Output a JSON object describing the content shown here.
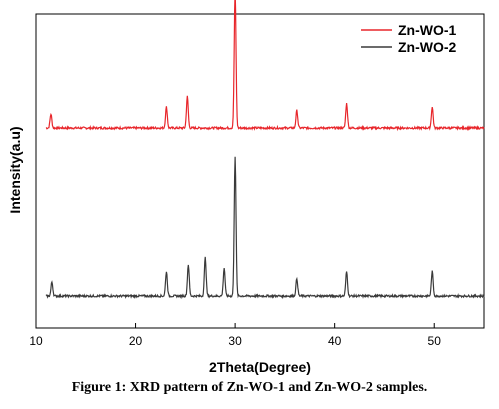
{
  "chart_data": {
    "type": "line",
    "xlabel": "2Theta(Degree)",
    "ylabel": "Intensity(a.u)",
    "xlim": [
      10,
      55
    ],
    "x_ticks": [
      10,
      20,
      30,
      40,
      50
    ],
    "y_ticks_shown": false,
    "grid": false,
    "legend_position": "top-right",
    "series": [
      {
        "name": "Zn-WO-1",
        "color": "#e8262b",
        "baseline": 0.48,
        "peaks": [
          {
            "x": 11.5,
            "y": 0.04
          },
          {
            "x": 23.1,
            "y": 0.06
          },
          {
            "x": 25.2,
            "y": 0.09
          },
          {
            "x": 30.0,
            "y": 0.39
          },
          {
            "x": 36.2,
            "y": 0.05
          },
          {
            "x": 41.2,
            "y": 0.07
          },
          {
            "x": 49.8,
            "y": 0.06
          }
        ]
      },
      {
        "name": "Zn-WO-2",
        "color": "#3a3a3a",
        "baseline": 0.0,
        "peaks": [
          {
            "x": 11.6,
            "y": 0.04
          },
          {
            "x": 23.1,
            "y": 0.07
          },
          {
            "x": 25.3,
            "y": 0.09
          },
          {
            "x": 27.0,
            "y": 0.11
          },
          {
            "x": 28.9,
            "y": 0.08
          },
          {
            "x": 30.0,
            "y": 0.4
          },
          {
            "x": 36.2,
            "y": 0.05
          },
          {
            "x": 41.2,
            "y": 0.07
          },
          {
            "x": 49.8,
            "y": 0.07
          }
        ]
      }
    ],
    "caption": "Figure 1: XRD pattern of Zn-WO-1 and Zn-WO-2 samples."
  }
}
